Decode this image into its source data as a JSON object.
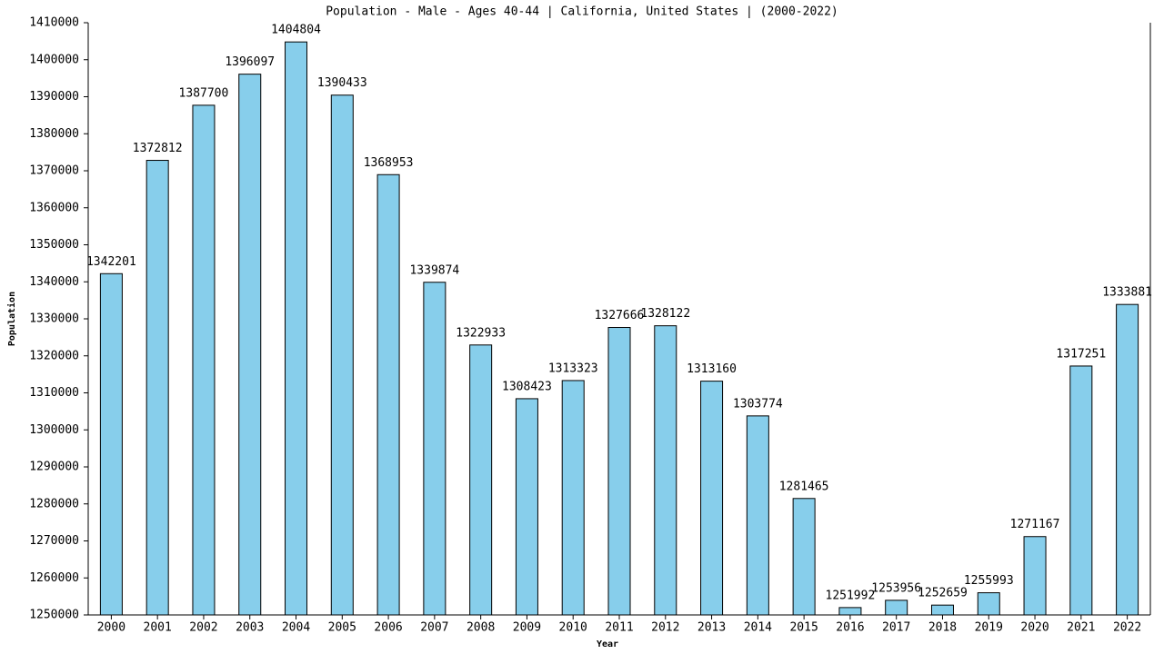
{
  "chart_data": {
    "type": "bar",
    "title": "Population - Male - Ages 40-44 | California, United States |  (2000-2022)",
    "x_label": "Year",
    "y_label": "Population",
    "categories": [
      "2000",
      "2001",
      "2002",
      "2003",
      "2004",
      "2005",
      "2006",
      "2007",
      "2008",
      "2009",
      "2010",
      "2011",
      "2012",
      "2013",
      "2014",
      "2015",
      "2016",
      "2017",
      "2018",
      "2019",
      "2020",
      "2021",
      "2022"
    ],
    "values": [
      1342201,
      1372812,
      1387700,
      1396097,
      1404804,
      1390433,
      1368953,
      1339874,
      1322933,
      1308423,
      1313323,
      1327666,
      1328122,
      1313160,
      1303774,
      1281465,
      1251992,
      1253956,
      1252659,
      1255993,
      1271167,
      1317251,
      1333881
    ],
    "color": "#87ceeb",
    "ylim": [
      1250000,
      1410000
    ],
    "yticks": [
      1250000,
      1260000,
      1270000,
      1280000,
      1290000,
      1300000,
      1310000,
      1320000,
      1330000,
      1340000,
      1350000,
      1360000,
      1370000,
      1380000,
      1390000,
      1400000,
      1410000
    ],
    "grid": false
  }
}
